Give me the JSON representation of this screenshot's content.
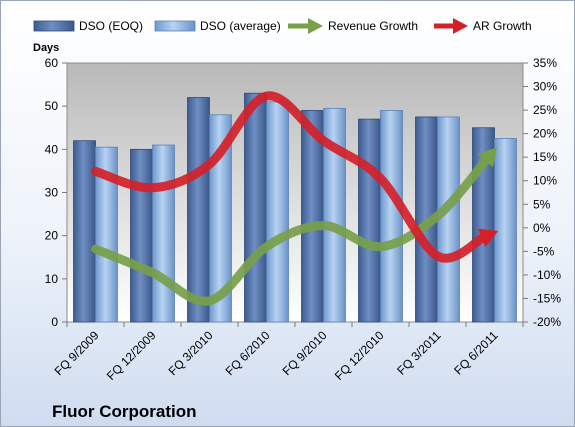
{
  "chart_data": {
    "type": "bar",
    "title": "Fluor Corporation",
    "categories": [
      "FQ 9/2009",
      "FQ 12/2009",
      "FQ 3/2010",
      "FQ 6/2010",
      "FQ 9/2010",
      "FQ 12/2010",
      "FQ 3/2011",
      "FQ 6/2011"
    ],
    "y_left": {
      "label": "Days",
      "range": [
        0,
        60
      ],
      "ticks": [
        "0",
        "10",
        "20",
        "30",
        "40",
        "50",
        "60"
      ]
    },
    "y_right": {
      "label": "",
      "range": [
        -20,
        35
      ],
      "ticks": [
        "-20%",
        "-15%",
        "-10%",
        "-5%",
        "0%",
        "5%",
        "10%",
        "15%",
        "20%",
        "25%",
        "30%",
        "35%"
      ]
    },
    "series": [
      {
        "name": "DSO (EOQ)",
        "kind": "bar",
        "axis": "left",
        "color": "#4f6fa5",
        "values": [
          42,
          40,
          52,
          53,
          49,
          47,
          47.5,
          45
        ]
      },
      {
        "name": "DSO (average)",
        "kind": "bar",
        "axis": "left",
        "color": "#8fb4e3",
        "values": [
          40.5,
          41,
          48,
          51,
          49.5,
          49,
          47.5,
          42.5
        ]
      },
      {
        "name": "Revenue Growth",
        "kind": "arrow-line",
        "axis": "right",
        "color": "#77a04a",
        "values": [
          -4.5,
          -9.5,
          -15.5,
          -4,
          0.5,
          -4,
          2.5,
          16.5
        ]
      },
      {
        "name": "AR Growth",
        "kind": "arrow-line",
        "axis": "right",
        "color": "#d42129",
        "values": [
          12,
          8.5,
          13.5,
          28,
          18.5,
          10.5,
          -6,
          -1
        ]
      }
    ],
    "grid": false,
    "legend_position": "top"
  }
}
